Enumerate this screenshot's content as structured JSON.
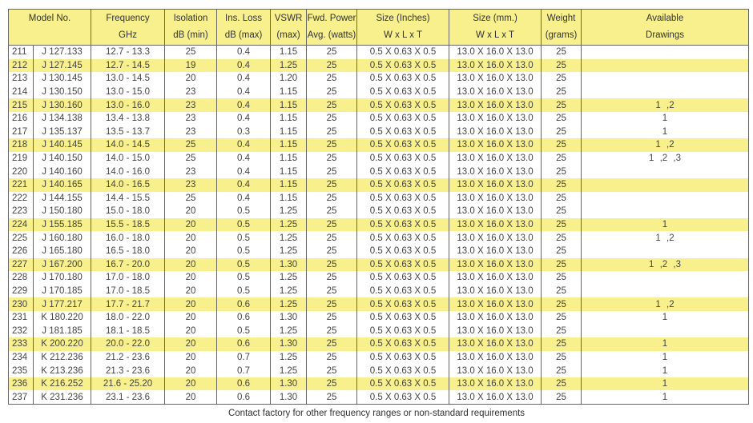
{
  "header": {
    "model": "Model No.",
    "frequency": [
      "Frequency",
      "GHz"
    ],
    "isolation": [
      "Isolation",
      "dB (min)"
    ],
    "ins_loss": [
      "Ins. Loss",
      "dB (max)"
    ],
    "vswr": [
      "VSWR",
      "(max)"
    ],
    "fwd_power": [
      "Fwd. Power",
      "Avg. (watts)"
    ],
    "size_in": [
      "Size (Inches)",
      "W x L x T"
    ],
    "size_mm": [
      "Size (mm.)",
      "W x L x T"
    ],
    "weight": [
      "Weight",
      "(grams)"
    ],
    "drawings": [
      "Available",
      "Drawings"
    ]
  },
  "highlight_color": "#f8f08c",
  "rows": [
    [
      "211",
      "J 127.133",
      "12.7 - 13.3",
      "25",
      "0.4",
      "1.15",
      "25",
      "0.5 X 0.63 X 0.5",
      "13.0 X 16.0 X 13.0",
      "25",
      ""
    ],
    [
      "212",
      "J 127.145",
      "12.7 - 14.5",
      "19",
      "0.4",
      "1.25",
      "25",
      "0.5 X 0.63 X 0.5",
      "13.0 X 16.0 X 13.0",
      "25",
      ""
    ],
    [
      "213",
      "J 130.145",
      "13.0 - 14.5",
      "20",
      "0.4",
      "1.20",
      "25",
      "0.5 X 0.63 X 0.5",
      "13.0 X 16.0 X 13.0",
      "25",
      ""
    ],
    [
      "214",
      "J 130.150",
      "13.0 - 15.0",
      "23",
      "0.4",
      "1.15",
      "25",
      "0.5 X 0.63 X 0.5",
      "13.0 X 16.0 X 13.0",
      "25",
      ""
    ],
    [
      "215",
      "J 130.160",
      "13.0 - 16.0",
      "23",
      "0.4",
      "1.15",
      "25",
      "0.5 X 0.63 X 0.5",
      "13.0 X 16.0 X 13.0",
      "25",
      "1 ,2"
    ],
    [
      "216",
      "J 134.138",
      "13.4 - 13.8",
      "23",
      "0.4",
      "1.15",
      "25",
      "0.5 X 0.63 X 0.5",
      "13.0 X 16.0 X 13.0",
      "25",
      "1"
    ],
    [
      "217",
      "J 135.137",
      "13.5 - 13.7",
      "23",
      "0.3",
      "1.15",
      "25",
      "0.5 X 0.63 X 0.5",
      "13.0 X 16.0 X 13.0",
      "25",
      "1"
    ],
    [
      "218",
      "J 140.145",
      "14.0 - 14.5",
      "25",
      "0.4",
      "1.15",
      "25",
      "0.5 X 0.63 X 0.5",
      "13.0 X 16.0 X 13.0",
      "25",
      "1 ,2"
    ],
    [
      "219",
      "J 140.150",
      "14.0 - 15.0",
      "25",
      "0.4",
      "1.15",
      "25",
      "0.5 X 0.63 X 0.5",
      "13.0 X 16.0 X 13.0",
      "25",
      "1 ,2 ,3"
    ],
    [
      "220",
      "J 140.160",
      "14.0 - 16.0",
      "23",
      "0.4",
      "1.15",
      "25",
      "0.5 X 0.63 X 0.5",
      "13.0 X 16.0 X 13.0",
      "25",
      ""
    ],
    [
      "221",
      "J 140.165",
      "14.0 - 16.5",
      "23",
      "0.4",
      "1.15",
      "25",
      "0.5 X 0.63 X 0.5",
      "13.0 X 16.0 X 13.0",
      "25",
      ""
    ],
    [
      "222",
      "J 144.155",
      "14.4 - 15.5",
      "25",
      "0.4",
      "1.15",
      "25",
      "0.5 X 0.63 X 0.5",
      "13.0 X 16.0 X 13.0",
      "25",
      ""
    ],
    [
      "223",
      "J 150.180",
      "15.0 - 18.0",
      "20",
      "0.5",
      "1.25",
      "25",
      "0.5 X 0.63 X 0.5",
      "13.0 X 16.0 X 13.0",
      "25",
      ""
    ],
    [
      "224",
      "J 155.185",
      "15.5 - 18.5",
      "20",
      "0.5",
      "1.25",
      "25",
      "0.5 X 0.63 X 0.5",
      "13.0 X 16.0 X 13.0",
      "25",
      "1"
    ],
    [
      "225",
      "J 160.180",
      "16.0 - 18.0",
      "20",
      "0.5",
      "1.25",
      "25",
      "0.5 X 0.63 X 0.5",
      "13.0 X 16.0 X 13.0",
      "25",
      "1 ,2"
    ],
    [
      "226",
      "J 165.180",
      "16.5 - 18.0",
      "20",
      "0.5",
      "1.25",
      "25",
      "0.5 X 0.63 X 0.5",
      "13.0 X 16.0 X 13.0",
      "25",
      ""
    ],
    [
      "227",
      "J 167.200",
      "16.7 - 20.0",
      "20",
      "0.5",
      "1.30",
      "25",
      "0.5 X 0.63 X 0.5",
      "13.0 X 16.0 X 13.0",
      "25",
      "1 ,2 ,3"
    ],
    [
      "228",
      "J 170.180",
      "17.0 - 18.0",
      "20",
      "0.5",
      "1.25",
      "25",
      "0.5 X 0.63 X 0.5",
      "13.0 X 16.0 X 13.0",
      "25",
      ""
    ],
    [
      "229",
      "J 170.185",
      "17.0 - 18.5",
      "20",
      "0.5",
      "1.25",
      "25",
      "0.5 X 0.63 X 0.5",
      "13.0 X 16.0 X 13.0",
      "25",
      ""
    ],
    [
      "230",
      "J 177.217",
      "17.7 - 21.7",
      "20",
      "0.6",
      "1.25",
      "25",
      "0.5 X 0.63 X 0.5",
      "13.0 X 16.0 X 13.0",
      "25",
      "1 ,2"
    ],
    [
      "231",
      "K 180.220",
      "18.0 - 22.0",
      "20",
      "0.6",
      "1.30",
      "25",
      "0.5 X 0.63 X 0.5",
      "13.0 X 16.0 X 13.0",
      "25",
      "1"
    ],
    [
      "232",
      "J 181.185",
      "18.1 - 18.5",
      "20",
      "0.5",
      "1.25",
      "25",
      "0.5 X 0.63 X 0.5",
      "13.0 X 16.0 X 13.0",
      "25",
      ""
    ],
    [
      "233",
      "K 200.220",
      "20.0 - 22.0",
      "20",
      "0.6",
      "1.30",
      "25",
      "0.5 X 0.63 X 0.5",
      "13.0 X 16.0 X 13.0",
      "25",
      "1"
    ],
    [
      "234",
      "K 212.236",
      "21.2 - 23.6",
      "20",
      "0.7",
      "1.25",
      "25",
      "0.5 X 0.63 X 0.5",
      "13.0 X 16.0 X 13.0",
      "25",
      "1"
    ],
    [
      "235",
      "K 213.236",
      "21.3 - 23.6",
      "20",
      "0.7",
      "1.25",
      "25",
      "0.5 X 0.63 X 0.5",
      "13.0 X 16.0 X 13.0",
      "25",
      "1"
    ],
    [
      "236",
      "K 216.252",
      "21.6 - 25.20",
      "20",
      "0.6",
      "1.30",
      "25",
      "0.5 X 0.63 X 0.5",
      "13.0 X 16.0 X 13.0",
      "25",
      "1"
    ],
    [
      "237",
      "K 231.236",
      "23.1 - 23.6",
      "20",
      "0.6",
      "1.30",
      "25",
      "0.5 X 0.63 X 0.5",
      "13.0 X 16.0 X 13.0",
      "25",
      "1"
    ]
  ],
  "highlighted_rows": [
    "212",
    "215",
    "218",
    "221",
    "224",
    "227",
    "230",
    "233",
    "236"
  ],
  "footer": "Contact factory for other frequency ranges or non-standard requirements"
}
